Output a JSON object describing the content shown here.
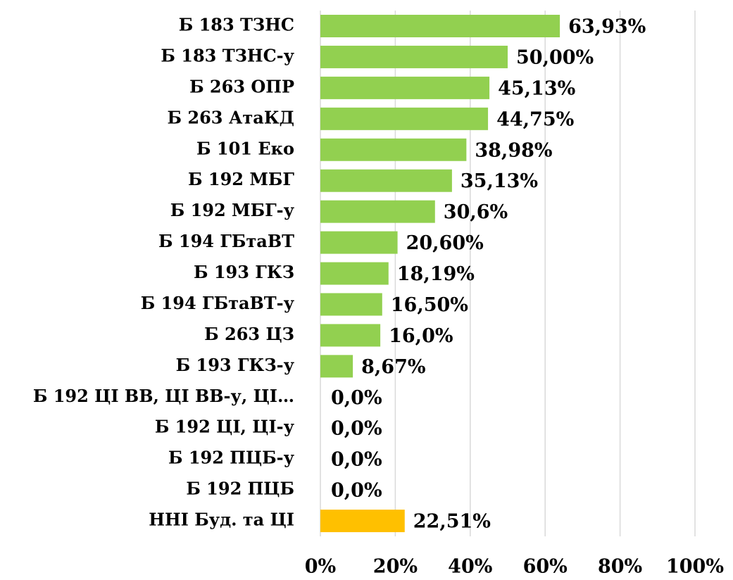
{
  "chart_data": {
    "type": "bar",
    "orientation": "horizontal",
    "categories": [
      "Б 183 ТЗНС",
      "Б 183 ТЗНС-у",
      "Б 263 ОПР",
      "Б 263 АтаКД",
      "Б 101 Еко",
      "Б 192 МБГ",
      "Б 192 МБГ-у",
      "Б 194 ГБтаВТ",
      "Б 193 ГКЗ",
      "Б 194 ГБтаВТ-у",
      "Б 263 ЦЗ",
      "Б 193 ГКЗ-у",
      "Б 192 ЦІ ВВ, ЦІ ВВ-у, ЦІ…",
      "Б 192 ЦІ, ЦІ-у",
      "Б 192 ПЦБ-у",
      "Б 192 ПЦБ",
      "ННІ Буд. та ЦІ"
    ],
    "values": [
      63.93,
      50.0,
      45.13,
      44.75,
      38.98,
      35.13,
      30.6,
      20.6,
      18.19,
      16.5,
      16.0,
      8.67,
      0.0,
      0.0,
      0.0,
      0.0,
      22.51
    ],
    "value_labels": [
      "63,93%",
      "50,00%",
      "45,13%",
      "44,75%",
      "38,98%",
      "35,13%",
      "30,6%",
      "20,60%",
      "18,19%",
      "16,50%",
      "16,0%",
      "8,67%",
      "0,0%",
      "0,0%",
      "0,0%",
      "0,0%",
      "22,51%"
    ],
    "colors": [
      "#92d050",
      "#92d050",
      "#92d050",
      "#92d050",
      "#92d050",
      "#92d050",
      "#92d050",
      "#92d050",
      "#92d050",
      "#92d050",
      "#92d050",
      "#92d050",
      "#92d050",
      "#92d050",
      "#92d050",
      "#92d050",
      "#ffc000"
    ],
    "xlim": [
      0,
      100
    ],
    "xticks": [
      {
        "value": 0,
        "label": "0%"
      },
      {
        "value": 20,
        "label": "20%"
      },
      {
        "value": 40,
        "label": "40%"
      },
      {
        "value": 60,
        "label": "60%"
      },
      {
        "value": 80,
        "label": "80%"
      },
      {
        "value": 100,
        "label": "100%"
      }
    ],
    "grid": true
  }
}
